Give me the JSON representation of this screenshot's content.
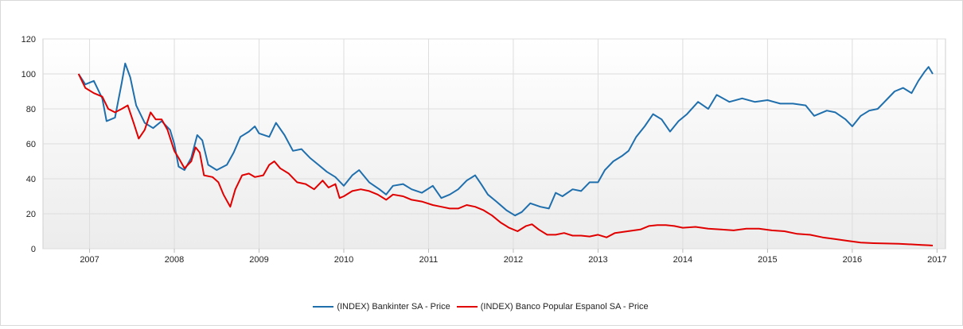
{
  "chart_data": {
    "type": "line",
    "title": "",
    "xlabel": "",
    "ylabel": "",
    "ylim": [
      0,
      120
    ],
    "xlim": [
      2006.45,
      2017.1
    ],
    "grid": true,
    "legend_position": "bottom",
    "y_ticks": [
      "0",
      "20",
      "40",
      "60",
      "80",
      "100",
      "120"
    ],
    "x_ticks": [
      "2007",
      "2008",
      "2009",
      "2010",
      "2011",
      "2012",
      "2013",
      "2014",
      "2015",
      "2016",
      "2017"
    ],
    "series": [
      {
        "name": "(INDEX) Bankinter SA - Price",
        "color": "#1f6fad",
        "points": [
          [
            2006.87,
            100
          ],
          [
            2006.95,
            94
          ],
          [
            2007.05,
            96
          ],
          [
            2007.15,
            86
          ],
          [
            2007.2,
            73
          ],
          [
            2007.3,
            75
          ],
          [
            2007.38,
            95
          ],
          [
            2007.42,
            106
          ],
          [
            2007.48,
            98
          ],
          [
            2007.55,
            82
          ],
          [
            2007.65,
            72
          ],
          [
            2007.75,
            69
          ],
          [
            2007.85,
            73
          ],
          [
            2007.95,
            68
          ],
          [
            2008.0,
            60
          ],
          [
            2008.05,
            47
          ],
          [
            2008.12,
            45
          ],
          [
            2008.2,
            52
          ],
          [
            2008.27,
            65
          ],
          [
            2008.33,
            62
          ],
          [
            2008.4,
            48
          ],
          [
            2008.5,
            45
          ],
          [
            2008.62,
            48
          ],
          [
            2008.7,
            55
          ],
          [
            2008.78,
            64
          ],
          [
            2008.88,
            67
          ],
          [
            2008.95,
            70
          ],
          [
            2009.0,
            66
          ],
          [
            2009.12,
            64
          ],
          [
            2009.2,
            72
          ],
          [
            2009.3,
            65
          ],
          [
            2009.4,
            56
          ],
          [
            2009.5,
            57
          ],
          [
            2009.6,
            52
          ],
          [
            2009.7,
            48
          ],
          [
            2009.8,
            44
          ],
          [
            2009.9,
            41
          ],
          [
            2010.0,
            36
          ],
          [
            2010.1,
            42
          ],
          [
            2010.18,
            45
          ],
          [
            2010.3,
            38
          ],
          [
            2010.42,
            34
          ],
          [
            2010.5,
            31
          ],
          [
            2010.58,
            36
          ],
          [
            2010.7,
            37
          ],
          [
            2010.8,
            34
          ],
          [
            2010.92,
            32
          ],
          [
            2011.05,
            36
          ],
          [
            2011.15,
            29
          ],
          [
            2011.25,
            31
          ],
          [
            2011.35,
            34
          ],
          [
            2011.45,
            39
          ],
          [
            2011.55,
            42
          ],
          [
            2011.62,
            37
          ],
          [
            2011.7,
            31
          ],
          [
            2011.8,
            27
          ],
          [
            2011.92,
            22
          ],
          [
            2012.02,
            19
          ],
          [
            2012.1,
            21
          ],
          [
            2012.2,
            26
          ],
          [
            2012.32,
            24
          ],
          [
            2012.42,
            23
          ],
          [
            2012.5,
            32
          ],
          [
            2012.58,
            30
          ],
          [
            2012.7,
            34
          ],
          [
            2012.8,
            33
          ],
          [
            2012.9,
            38
          ],
          [
            2013.0,
            38
          ],
          [
            2013.08,
            45
          ],
          [
            2013.18,
            50
          ],
          [
            2013.28,
            53
          ],
          [
            2013.36,
            56
          ],
          [
            2013.45,
            64
          ],
          [
            2013.55,
            70
          ],
          [
            2013.65,
            77
          ],
          [
            2013.75,
            74
          ],
          [
            2013.85,
            67
          ],
          [
            2013.95,
            73
          ],
          [
            2014.05,
            77
          ],
          [
            2014.18,
            84
          ],
          [
            2014.3,
            80
          ],
          [
            2014.4,
            88
          ],
          [
            2014.55,
            84
          ],
          [
            2014.7,
            86
          ],
          [
            2014.85,
            84
          ],
          [
            2015.0,
            85
          ],
          [
            2015.15,
            83
          ],
          [
            2015.3,
            83
          ],
          [
            2015.45,
            82
          ],
          [
            2015.55,
            76
          ],
          [
            2015.7,
            79
          ],
          [
            2015.8,
            78
          ],
          [
            2015.92,
            74
          ],
          [
            2016.0,
            70
          ],
          [
            2016.1,
            76
          ],
          [
            2016.2,
            79
          ],
          [
            2016.3,
            80
          ],
          [
            2016.4,
            85
          ],
          [
            2016.5,
            90
          ],
          [
            2016.6,
            92
          ],
          [
            2016.7,
            89
          ],
          [
            2016.78,
            96
          ],
          [
            2016.85,
            101
          ],
          [
            2016.9,
            104
          ],
          [
            2016.95,
            100
          ]
        ]
      },
      {
        "name": "(INDEX) Banco Popular Espanol SA - Price",
        "color": "#e10000",
        "points": [
          [
            2006.87,
            100
          ],
          [
            2006.95,
            92
          ],
          [
            2007.05,
            89
          ],
          [
            2007.15,
            87
          ],
          [
            2007.22,
            80
          ],
          [
            2007.3,
            78
          ],
          [
            2007.38,
            80
          ],
          [
            2007.45,
            82
          ],
          [
            2007.52,
            72
          ],
          [
            2007.58,
            63
          ],
          [
            2007.65,
            68
          ],
          [
            2007.72,
            78
          ],
          [
            2007.78,
            74
          ],
          [
            2007.85,
            74
          ],
          [
            2007.92,
            68
          ],
          [
            2008.0,
            56
          ],
          [
            2008.05,
            52
          ],
          [
            2008.12,
            46
          ],
          [
            2008.2,
            50
          ],
          [
            2008.25,
            58
          ],
          [
            2008.3,
            55
          ],
          [
            2008.35,
            42
          ],
          [
            2008.45,
            41
          ],
          [
            2008.52,
            38
          ],
          [
            2008.58,
            31
          ],
          [
            2008.66,
            24
          ],
          [
            2008.72,
            34
          ],
          [
            2008.8,
            42
          ],
          [
            2008.88,
            43
          ],
          [
            2008.95,
            41
          ],
          [
            2009.05,
            42
          ],
          [
            2009.12,
            48
          ],
          [
            2009.18,
            50
          ],
          [
            2009.25,
            46
          ],
          [
            2009.35,
            43
          ],
          [
            2009.45,
            38
          ],
          [
            2009.55,
            37
          ],
          [
            2009.65,
            34
          ],
          [
            2009.75,
            39
          ],
          [
            2009.82,
            35
          ],
          [
            2009.9,
            37
          ],
          [
            2009.95,
            29
          ],
          [
            2010.0,
            30
          ],
          [
            2010.1,
            33
          ],
          [
            2010.2,
            34
          ],
          [
            2010.3,
            33
          ],
          [
            2010.4,
            31
          ],
          [
            2010.5,
            28
          ],
          [
            2010.58,
            31
          ],
          [
            2010.7,
            30
          ],
          [
            2010.8,
            28
          ],
          [
            2010.92,
            27
          ],
          [
            2011.05,
            25
          ],
          [
            2011.15,
            24
          ],
          [
            2011.25,
            23
          ],
          [
            2011.35,
            23
          ],
          [
            2011.45,
            25
          ],
          [
            2011.55,
            24
          ],
          [
            2011.65,
            22
          ],
          [
            2011.75,
            19
          ],
          [
            2011.85,
            15
          ],
          [
            2011.95,
            12
          ],
          [
            2012.05,
            10
          ],
          [
            2012.15,
            13
          ],
          [
            2012.22,
            14
          ],
          [
            2012.3,
            11
          ],
          [
            2012.4,
            8
          ],
          [
            2012.5,
            8
          ],
          [
            2012.6,
            9
          ],
          [
            2012.7,
            7.5
          ],
          [
            2012.8,
            7.5
          ],
          [
            2012.9,
            7
          ],
          [
            2013.0,
            8
          ],
          [
            2013.1,
            6.5
          ],
          [
            2013.2,
            9
          ],
          [
            2013.35,
            10
          ],
          [
            2013.5,
            11
          ],
          [
            2013.6,
            13
          ],
          [
            2013.7,
            13.5
          ],
          [
            2013.8,
            13.5
          ],
          [
            2013.9,
            13
          ],
          [
            2014.0,
            12
          ],
          [
            2014.15,
            12.5
          ],
          [
            2014.3,
            11.5
          ],
          [
            2014.45,
            11
          ],
          [
            2014.6,
            10.5
          ],
          [
            2014.75,
            11.5
          ],
          [
            2014.9,
            11.5
          ],
          [
            2015.05,
            10.5
          ],
          [
            2015.2,
            10
          ],
          [
            2015.35,
            8.5
          ],
          [
            2015.5,
            8
          ],
          [
            2015.65,
            6.5
          ],
          [
            2015.8,
            5.5
          ],
          [
            2015.95,
            4.5
          ],
          [
            2016.1,
            3.5
          ],
          [
            2016.25,
            3.2
          ],
          [
            2016.4,
            3
          ],
          [
            2016.55,
            2.8
          ],
          [
            2016.7,
            2.5
          ],
          [
            2016.82,
            2.2
          ],
          [
            2016.9,
            2
          ],
          [
            2016.95,
            1.8
          ]
        ]
      }
    ]
  }
}
